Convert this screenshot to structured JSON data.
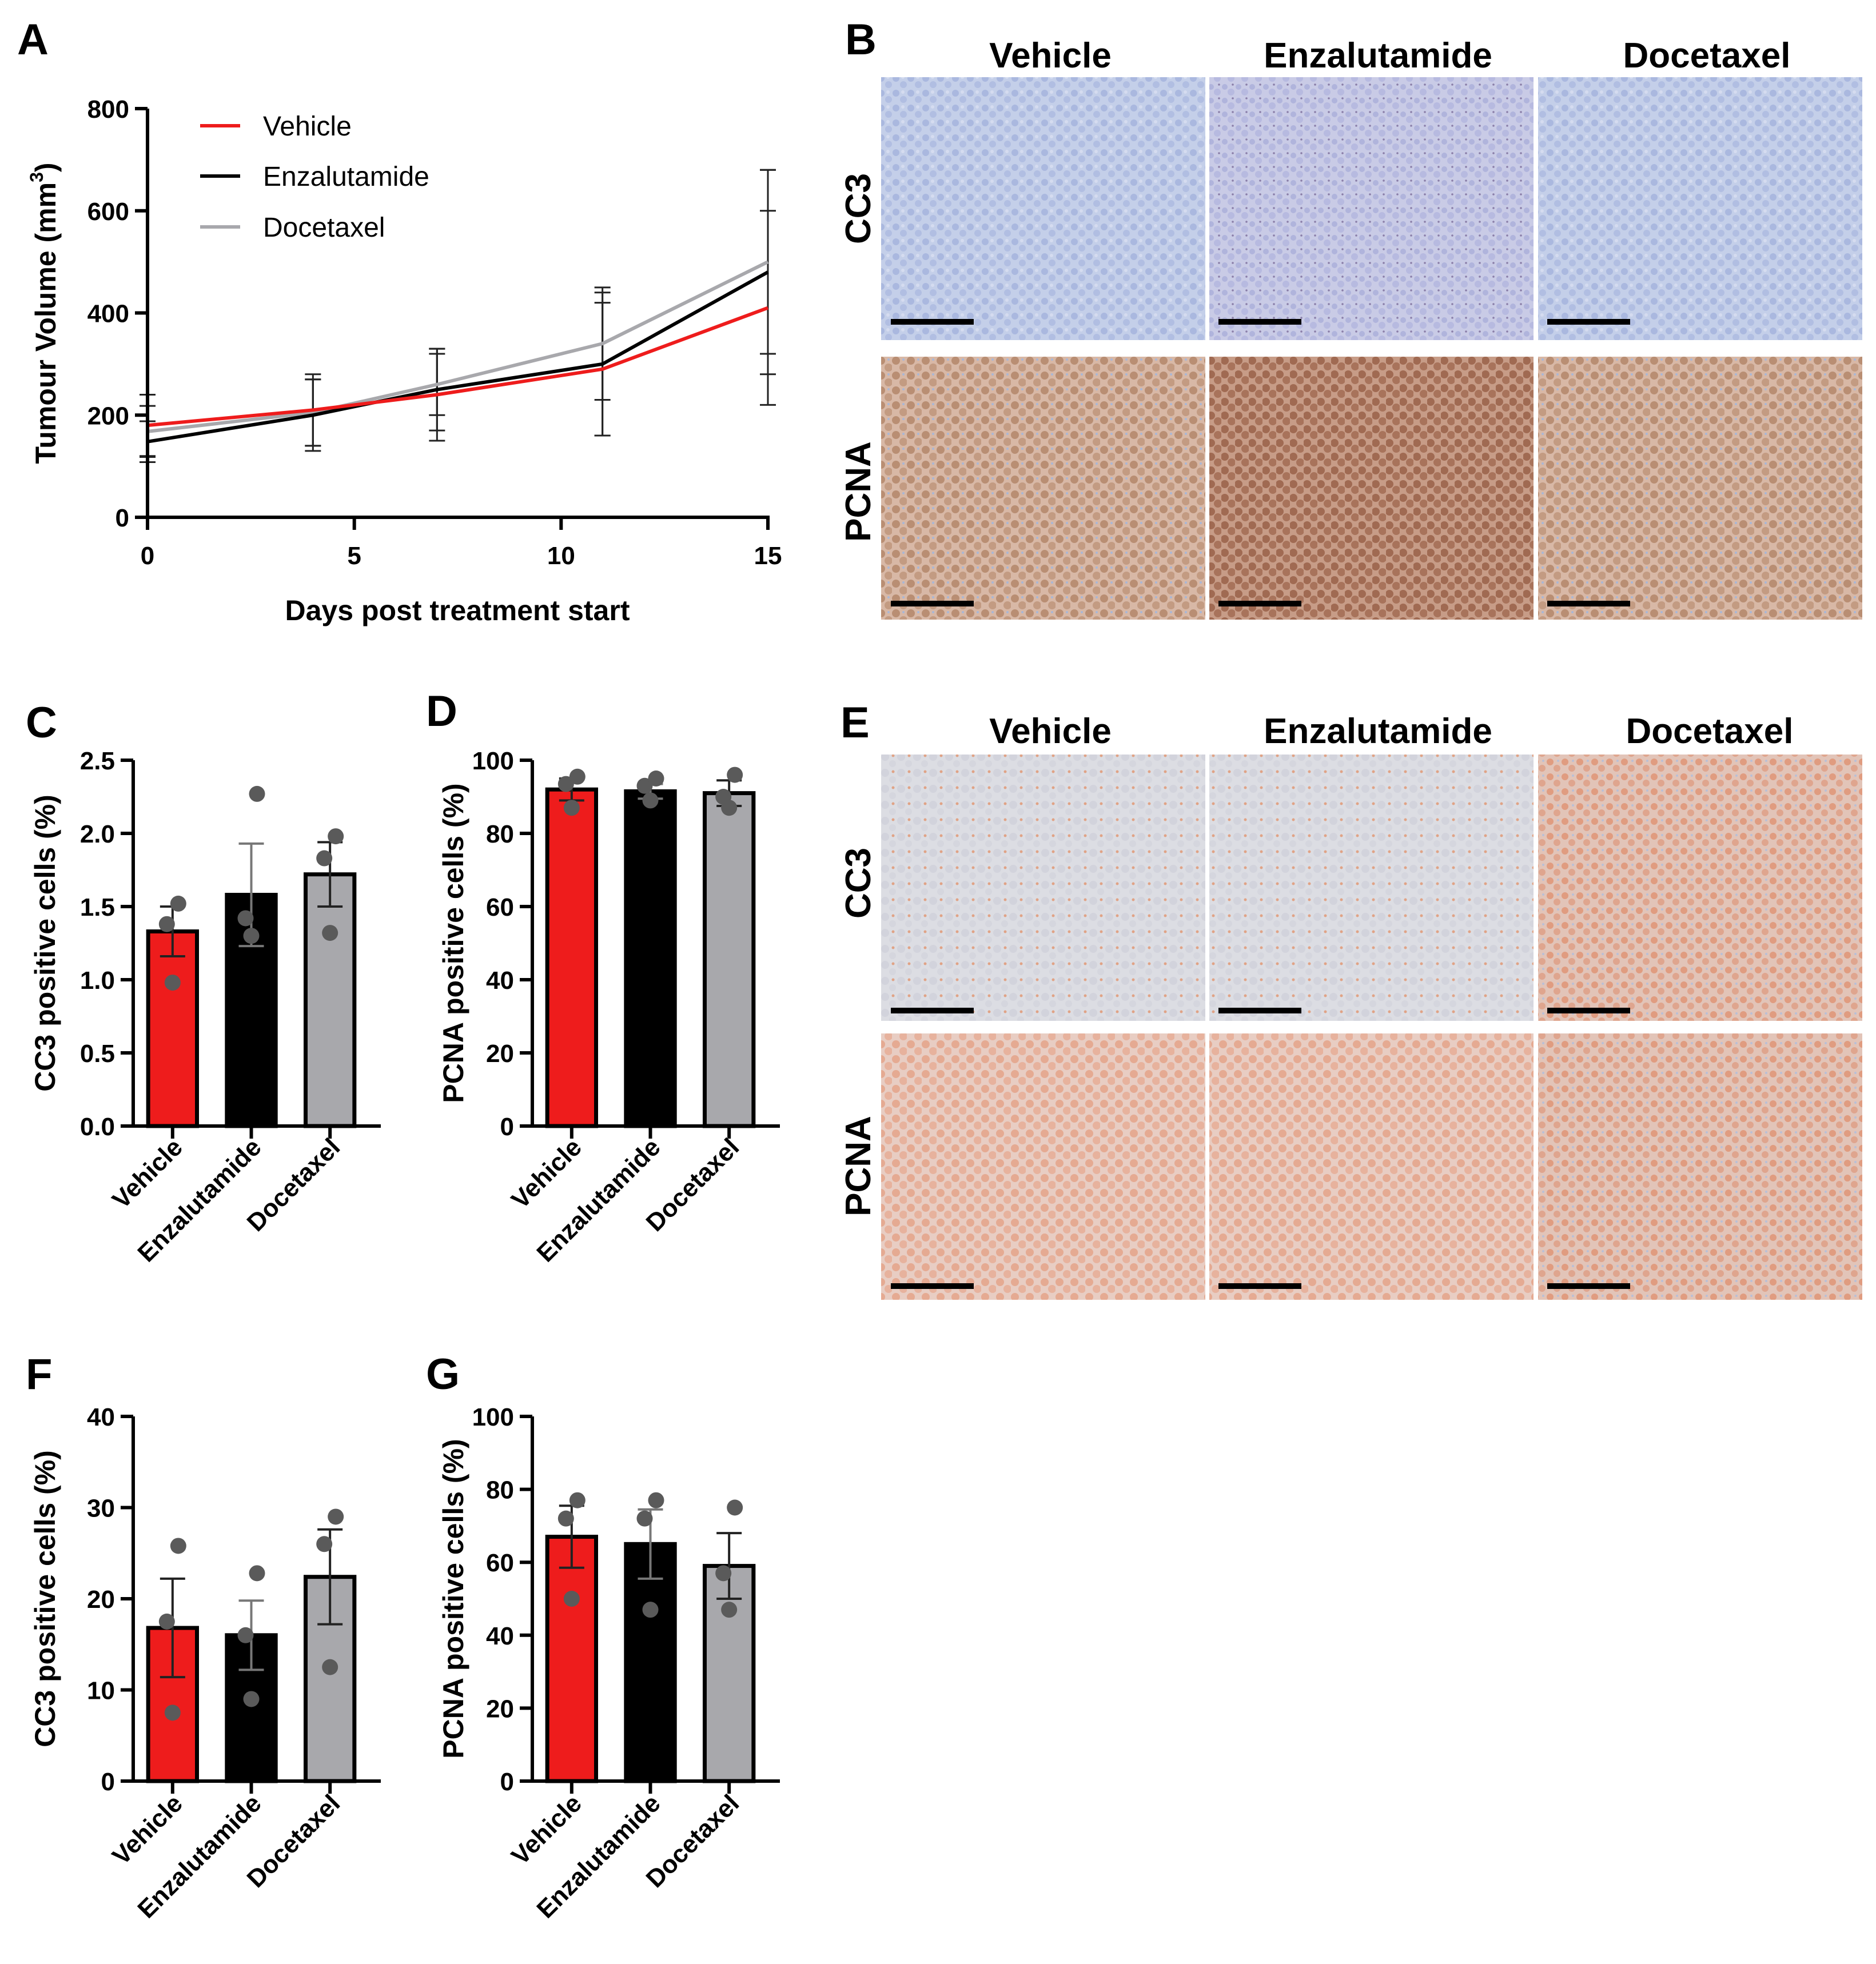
{
  "panel_labels": [
    "A",
    "B",
    "C",
    "D",
    "E",
    "F",
    "G"
  ],
  "colors": {
    "vehicle": "#ee1c1c",
    "enzalutamide": "#000000",
    "docetaxel": "#a8a8ac",
    "dot": "#5a5a5a"
  },
  "micrographs": {
    "B": {
      "columns": [
        "Vehicle",
        "Enzalutamide",
        "Docetaxel"
      ],
      "rows": [
        "CC3",
        "PCNA"
      ]
    },
    "E": {
      "columns": [
        "Vehicle",
        "Enzalutamide",
        "Docetaxel"
      ],
      "rows": [
        "CC3",
        "PCNA"
      ]
    }
  },
  "chart_data": [
    {
      "panel": "A",
      "type": "line",
      "xlabel": "Days post treatment start",
      "ylabel": "Tumour Volume (mm3)",
      "ylabel_main": "Tumour Volume (mm",
      "ylabel_sup": "3",
      "ylabel_close": ")",
      "xlim": [
        0,
        15
      ],
      "ylim": [
        0,
        800
      ],
      "xticks": [
        0,
        5,
        10,
        15
      ],
      "yticks": [
        0,
        200,
        400,
        600,
        800
      ],
      "legend_position": "top-left",
      "x": [
        0,
        4,
        7,
        11,
        15
      ],
      "series": [
        {
          "name": "Vehicle",
          "color_key": "vehicle",
          "values": [
            180,
            210,
            240,
            290,
            410
          ],
          "err": [
            60,
            70,
            90,
            130,
            190
          ]
        },
        {
          "name": "Enzalutamide",
          "color_key": "enzalutamide",
          "values": [
            148,
            200,
            250,
            300,
            480
          ],
          "err": [
            40,
            70,
            80,
            140,
            200
          ]
        },
        {
          "name": "Docetaxel",
          "color_key": "docetaxel",
          "values": [
            168,
            205,
            260,
            340,
            500
          ],
          "err": [
            50,
            65,
            60,
            110,
            180
          ]
        }
      ]
    },
    {
      "panel": "C",
      "type": "bar",
      "ylabel": "CC3 positive cells (%)",
      "ylim": [
        0,
        2.5
      ],
      "yticks": [
        "0.0",
        "0.5",
        "1.0",
        "1.5",
        "2.0",
        "2.5"
      ],
      "categories": [
        "Vehicle",
        "Enzalutamide",
        "Docetaxel"
      ],
      "values": [
        1.33,
        1.58,
        1.72
      ],
      "sem": [
        0.17,
        0.35,
        0.22
      ],
      "points": [
        [
          0.98,
          1.38,
          1.52
        ],
        [
          1.3,
          1.42,
          2.27
        ],
        [
          1.32,
          1.83,
          1.98
        ]
      ]
    },
    {
      "panel": "D",
      "type": "bar",
      "ylabel": "PCNA positive cells (%)",
      "ylim": [
        0,
        100
      ],
      "yticks": [
        "0",
        "20",
        "40",
        "60",
        "80",
        "100"
      ],
      "categories": [
        "Vehicle",
        "Enzalutamide",
        "Docetaxel"
      ],
      "values": [
        92,
        91.5,
        91
      ],
      "sem": [
        3,
        2,
        3.5
      ],
      "points": [
        [
          87,
          93.5,
          95.5
        ],
        [
          89,
          93,
          95
        ],
        [
          87,
          90,
          96
        ]
      ]
    },
    {
      "panel": "F",
      "type": "bar",
      "ylabel": "CC3 positive cells (%)",
      "ylim": [
        0,
        40
      ],
      "yticks": [
        "0",
        "10",
        "20",
        "30",
        "40"
      ],
      "categories": [
        "Vehicle",
        "Enzalutamide",
        "Docetaxel"
      ],
      "values": [
        16.8,
        16,
        22.4
      ],
      "sem": [
        5.4,
        3.8,
        5.2
      ],
      "points": [
        [
          7.5,
          17.5,
          25.8
        ],
        [
          9,
          16,
          22.8
        ],
        [
          12.5,
          26,
          29
        ]
      ]
    },
    {
      "panel": "G",
      "type": "bar",
      "ylabel": "PCNA positive cells (%)",
      "ylim": [
        0,
        100
      ],
      "yticks": [
        "0",
        "20",
        "40",
        "60",
        "80",
        "100"
      ],
      "categories": [
        "Vehicle",
        "Enzalutamide",
        "Docetaxel"
      ],
      "values": [
        67,
        65,
        59
      ],
      "sem": [
        8.5,
        9.5,
        9
      ],
      "points": [
        [
          50,
          72,
          77
        ],
        [
          47,
          72,
          77
        ],
        [
          47,
          57,
          75
        ]
      ]
    }
  ]
}
